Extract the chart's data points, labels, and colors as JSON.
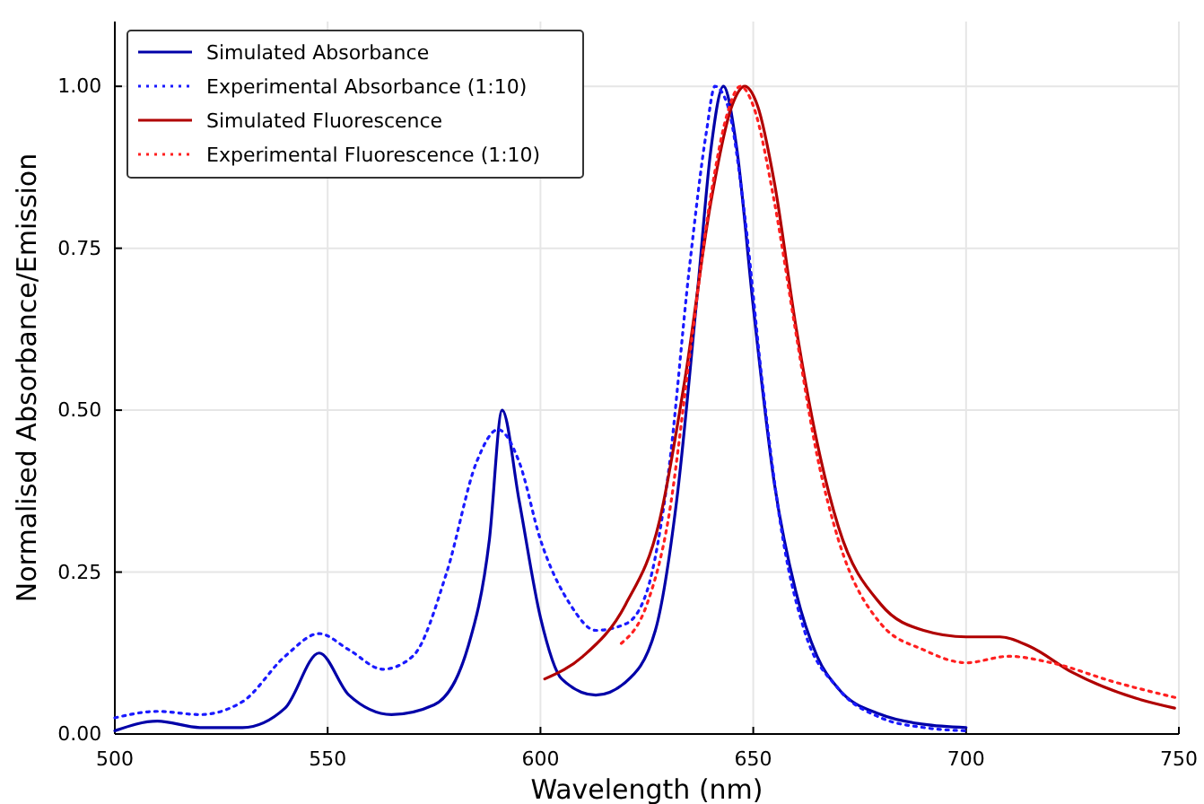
{
  "chart_data": {
    "type": "line",
    "xlabel": "Wavelength (nm)",
    "ylabel": "Normalised Absorbance/Emission",
    "xlim": [
      500,
      750
    ],
    "ylim": [
      0,
      1.1
    ],
    "xticks": [
      500,
      550,
      600,
      650,
      700,
      750
    ],
    "yticks": [
      {
        "value": 0,
        "label": "0.00"
      },
      {
        "value": 0.25,
        "label": "0.25"
      },
      {
        "value": 0.5,
        "label": "0.50"
      },
      {
        "value": 0.75,
        "label": "0.75"
      },
      {
        "value": 1,
        "label": "1.00"
      }
    ],
    "grid": true,
    "legend": "top left",
    "series": [
      {
        "name": "Simulated Absorbance",
        "color": "#0000a8",
        "line_style": "solid",
        "x": [
          500,
          510,
          520,
          530,
          540,
          548,
          555,
          565,
          575,
          583,
          588,
          591,
          595,
          600,
          605,
          613,
          620,
          627,
          632,
          637,
          640,
          643,
          646,
          650,
          655,
          660,
          665,
          670,
          680,
          690,
          700
        ],
        "values": [
          0.005,
          0.02,
          0.01,
          0.01,
          0.04,
          0.125,
          0.06,
          0.03,
          0.045,
          0.135,
          0.3,
          0.5,
          0.36,
          0.18,
          0.085,
          0.06,
          0.08,
          0.16,
          0.36,
          0.69,
          0.9,
          1.0,
          0.91,
          0.66,
          0.385,
          0.22,
          0.12,
          0.07,
          0.03,
          0.015,
          0.01
        ]
      },
      {
        "name": "Experimental Absorbance (1:10)",
        "color": "#1a1aff",
        "line_style": "dotted",
        "x": [
          500,
          510,
          520,
          530,
          540,
          548,
          555,
          563,
          570,
          578,
          585,
          590,
          595,
          600,
          607,
          613,
          620,
          625,
          630,
          635,
          639,
          641,
          644,
          648,
          652,
          657,
          662,
          670,
          680,
          690,
          700
        ],
        "values": [
          0.025,
          0.035,
          0.03,
          0.05,
          0.12,
          0.155,
          0.13,
          0.1,
          0.12,
          0.25,
          0.42,
          0.47,
          0.42,
          0.3,
          0.2,
          0.16,
          0.17,
          0.22,
          0.4,
          0.72,
          0.93,
          1.0,
          0.97,
          0.8,
          0.55,
          0.3,
          0.16,
          0.07,
          0.025,
          0.01,
          0.005
        ]
      },
      {
        "name": "Simulated Fluorescence",
        "color": "#b00000",
        "line_style": "solid",
        "x": [
          601,
          610,
          620,
          628,
          634,
          640,
          645,
          648,
          651,
          655,
          660,
          665,
          670,
          680,
          690,
          700,
          708,
          715,
          725,
          740,
          749
        ],
        "values": [
          0.085,
          0.12,
          0.2,
          0.33,
          0.55,
          0.82,
          0.97,
          1.0,
          0.97,
          0.85,
          0.63,
          0.45,
          0.32,
          0.2,
          0.16,
          0.15,
          0.15,
          0.135,
          0.095,
          0.055,
          0.04
        ]
      },
      {
        "name": "Experimental Fluorescence (1:10)",
        "color": "#ff2020",
        "line_style": "dotted",
        "x": [
          619,
          625,
          630,
          635,
          640,
          644,
          647,
          650,
          655,
          660,
          665,
          670,
          680,
          690,
          700,
          710,
          720,
          735,
          750
        ],
        "values": [
          0.14,
          0.2,
          0.33,
          0.58,
          0.83,
          0.96,
          1.0,
          0.97,
          0.82,
          0.62,
          0.43,
          0.3,
          0.17,
          0.13,
          0.11,
          0.12,
          0.11,
          0.08,
          0.055
        ]
      }
    ]
  }
}
